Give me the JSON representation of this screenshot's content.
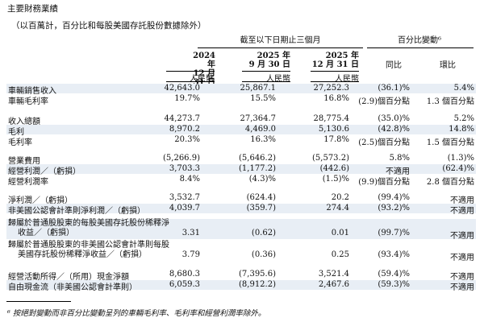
{
  "title": "主要財務業績",
  "subtitle": "（以百萬計，百分比和每股美國存託股份數據除外）",
  "header": {
    "period_group": "截至以下日期止三個月",
    "change_group": "百分比變動⁶",
    "columns": [
      {
        "line1": "2024 年",
        "line2": "12 月 31 日",
        "currency": "人民幣"
      },
      {
        "line1": "2025 年",
        "line2": "9 月 30 日",
        "currency": "人民幣"
      },
      {
        "line1": "2025 年",
        "line2": "12 月 31 日",
        "currency": "人民幣"
      }
    ],
    "yoy": "同比",
    "qoq": "環比"
  },
  "rows": [
    {
      "label": "車輛銷售收入",
      "v1": "42,643.0",
      "v2": "25,867.1",
      "v3": "27,252.3",
      "yoy": "(36.1)%",
      "qoq": "5.4%"
    },
    {
      "label": "車輛毛利率",
      "v1": "19.7%",
      "v2": "15.5%",
      "v3": "16.8%",
      "yoy": "(2.9)個百分點",
      "qoq": "1.3 個百分點"
    },
    {
      "label": "收入總額",
      "v1": "44,273.7",
      "v2": "27,364.7",
      "v3": "28,775.4",
      "yoy": "(35.0)%",
      "qoq": "5.2%"
    },
    {
      "label": "毛利",
      "v1": "8,970.2",
      "v2": "4,469.0",
      "v3": "5,130.6",
      "yoy": "(42.8)%",
      "qoq": "14.8%"
    },
    {
      "label": "毛利率",
      "v1": "20.3%",
      "v2": "16.3%",
      "v3": "17.8%",
      "yoy": "(2.5)個百分點",
      "qoq": "1.5 個百分點"
    },
    {
      "label": "營業費用",
      "v1": "(5,266.9)",
      "v2": "(5,646.2)",
      "v3": "(5,573.2)",
      "yoy": "5.8%",
      "qoq": "(1.3)%"
    },
    {
      "label": "經營利潤／（虧損）",
      "v1": "3,703.3",
      "v2": "(1,177.2)",
      "v3": "(442.6)",
      "yoy": "不適用",
      "qoq": "(62.4)%"
    },
    {
      "label": "經營利潤率",
      "v1": "8.4%",
      "v2": "(4.3)%",
      "v3": "(1.5)%",
      "yoy": "(9.9)個百分點",
      "qoq": "2.8 個百分點"
    },
    {
      "label": "淨利潤／（虧損）",
      "v1": "3,532.7",
      "v2": "(624.4)",
      "v3": "20.2",
      "yoy": "(99.4)%",
      "qoq": "不適用"
    },
    {
      "label": "非美國公認會計準則淨利潤／（虧損）",
      "v1": "4,039.7",
      "v2": "(359.7)",
      "v3": "274.4",
      "yoy": "(93.2)%",
      "qoq": "不適用"
    },
    {
      "label_line1": "歸屬於普通股股東的每股美國存託股份稀釋淨",
      "label_line2": "收益／（虧損）",
      "v1": "3.31",
      "v2": "(0.62)",
      "v3": "0.01",
      "yoy": "(99.7)%",
      "qoq": "不適用"
    },
    {
      "label_line1": "歸屬於普通股股東的非美國公認會計準則每股",
      "label_line2": "美國存託股份稀釋淨收益／（虧損）",
      "v1": "3.79",
      "v2": "(0.36)",
      "v3": "0.25",
      "yoy": "(93.4)%",
      "qoq": "不適用"
    },
    {
      "label": "經營活動所得／（所用）現金淨額",
      "v1": "8,680.3",
      "v2": "(7,395.6)",
      "v3": "3,521.4",
      "yoy": "(59.4)%",
      "qoq": "不適用"
    },
    {
      "label": "自由現金流（非美國公認會計準則）",
      "v1": "6,059.3",
      "v2": "(8,912.2)",
      "v3": "2,467.6",
      "yoy": "(59.3)%",
      "qoq": "不適用"
    }
  ],
  "footnote": "⁶ 按絕對變動而非百分比變動呈列的車輛毛利率、毛利率和經營利潤率除外。"
}
